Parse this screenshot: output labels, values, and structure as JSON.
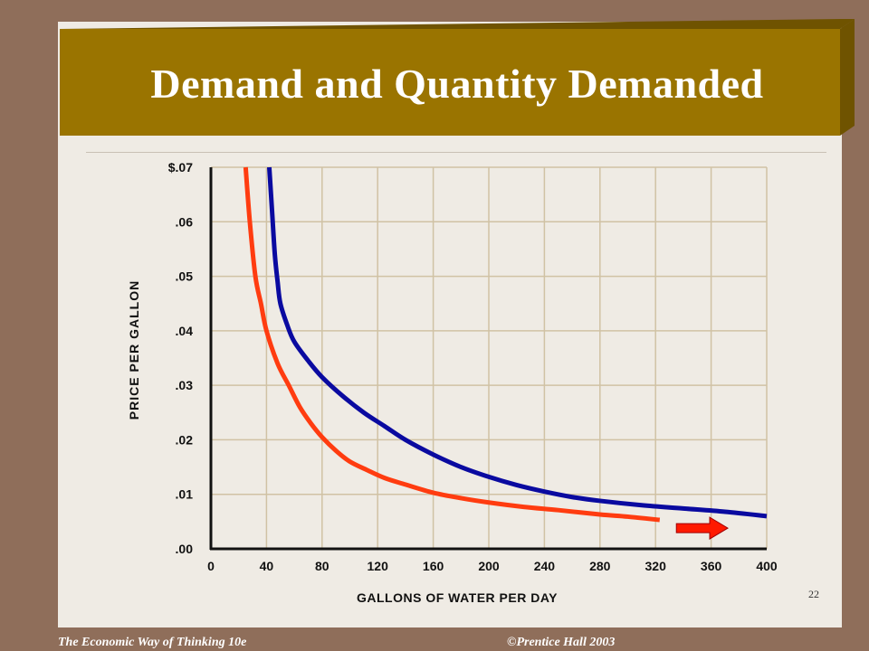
{
  "slide": {
    "title": "Demand and Quantity Demanded",
    "page_number": "22",
    "footer_left": "The Economic Way of Thinking 10e",
    "footer_right": "©Prentice Hall 2003",
    "colors": {
      "background": "#8f6e5a",
      "slide": "#efebe4",
      "banner": "#9a7400",
      "banner_shadow": "#6f5300"
    }
  },
  "chart_data": {
    "type": "line",
    "title": "",
    "xlabel": "GALLONS OF WATER PER DAY",
    "ylabel": "PRICE PER GALLON",
    "xlim": [
      0,
      400
    ],
    "ylim": [
      0,
      0.07
    ],
    "x_ticks": [
      0,
      40,
      80,
      120,
      160,
      200,
      240,
      280,
      320,
      360,
      400
    ],
    "x_tick_labels": [
      "0",
      "40",
      "80",
      "120",
      "160",
      "200",
      "240",
      "280",
      "320",
      "360",
      "400"
    ],
    "y_ticks": [
      0,
      0.01,
      0.02,
      0.03,
      0.04,
      0.05,
      0.06,
      0.07
    ],
    "y_tick_labels": [
      ".00",
      ".01",
      ".02",
      ".03",
      ".04",
      ".05",
      ".06",
      "$.07"
    ],
    "grid": true,
    "legend": "none",
    "series": [
      {
        "color": "#ff3c10",
        "x": [
          25,
          28,
          32,
          36,
          40,
          48,
          56,
          64,
          72,
          80,
          90,
          100,
          112,
          125,
          140,
          160,
          180,
          200,
          225,
          250,
          280,
          300,
          323
        ],
        "y": [
          0.07,
          0.06,
          0.05,
          0.045,
          0.04,
          0.034,
          0.03,
          0.026,
          0.023,
          0.0205,
          0.018,
          0.016,
          0.0145,
          0.013,
          0.0118,
          0.0103,
          0.0093,
          0.0085,
          0.0077,
          0.0071,
          0.0063,
          0.0059,
          0.0053
        ]
      },
      {
        "color": "#0a0aa0",
        "x": [
          42,
          44,
          46,
          48,
          50,
          55,
          60,
          70,
          80,
          95,
          110,
          125,
          140,
          160,
          180,
          200,
          220,
          240,
          260,
          280,
          310,
          340,
          370,
          400
        ],
        "y": [
          0.07,
          0.062,
          0.054,
          0.049,
          0.045,
          0.041,
          0.038,
          0.0345,
          0.0315,
          0.028,
          0.025,
          0.0225,
          0.02,
          0.0173,
          0.015,
          0.0132,
          0.0117,
          0.0105,
          0.0095,
          0.0088,
          0.008,
          0.0074,
          0.0068,
          0.006
        ]
      }
    ],
    "annotations": [
      {
        "type": "arrow",
        "direction": "right",
        "color": "#ff1a00",
        "x_from": 335,
        "x_to": 372,
        "y": 0.0038
      }
    ]
  }
}
